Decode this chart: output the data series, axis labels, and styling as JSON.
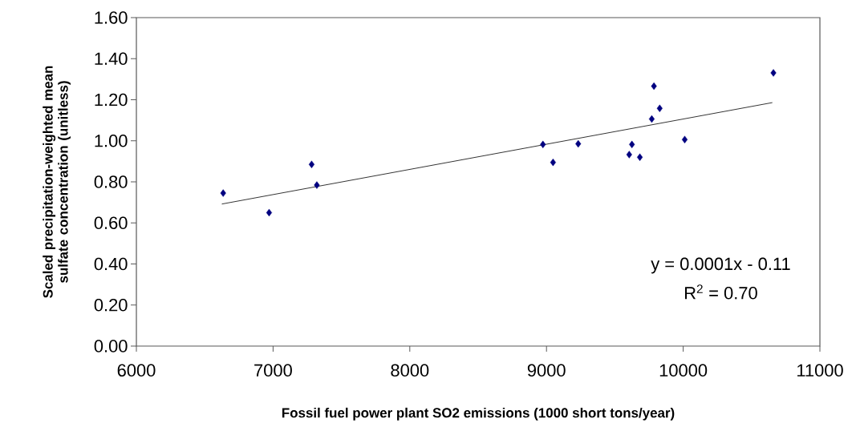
{
  "chart_data": {
    "type": "scatter",
    "xlabel": "Fossil fuel power plant SO2 emissions (1000 short tons/year)",
    "ylabel": "Scaled precipitation-weighted mean sulfate concentration (unitless)",
    "xlim": [
      6000,
      11000
    ],
    "xticks": [
      6000,
      7000,
      8000,
      9000,
      10000,
      11000
    ],
    "ylim": [
      0,
      1.6
    ],
    "yticks": [
      {
        "value": 0,
        "label": "0.00"
      },
      {
        "value": 0.2,
        "label": "0.20"
      },
      {
        "value": 0.4,
        "label": "0.40"
      },
      {
        "value": 0.6,
        "label": "0.60"
      },
      {
        "value": 0.8,
        "label": "0.80"
      },
      {
        "value": 1.0,
        "label": "1.00"
      },
      {
        "value": 1.2,
        "label": "1.20"
      },
      {
        "value": 1.4,
        "label": "1.40"
      },
      {
        "value": 1.6,
        "label": "1.60"
      }
    ],
    "grid": false,
    "marker": "diamond",
    "series": [
      {
        "color": "#000080",
        "x": [
          6635,
          6971,
          7282,
          7320,
          8974,
          9048,
          9232,
          9605,
          9625,
          9683,
          9770,
          9786,
          9828,
          10011,
          10660
        ],
        "values": [
          0.745,
          0.65,
          0.885,
          0.784,
          0.982,
          0.895,
          0.985,
          0.933,
          0.982,
          0.92,
          1.106,
          1.266,
          1.158,
          1.006,
          1.331
        ]
      },
      {
        "type": "line",
        "color": "#000000",
        "marker": "none",
        "x": [
          6625,
          10652
        ],
        "values": [
          0.692,
          1.186
        ]
      }
    ],
    "annotations": [
      "y = 0.0001x - 0.11",
      "R$^{2}$ = 0.70"
    ]
  }
}
